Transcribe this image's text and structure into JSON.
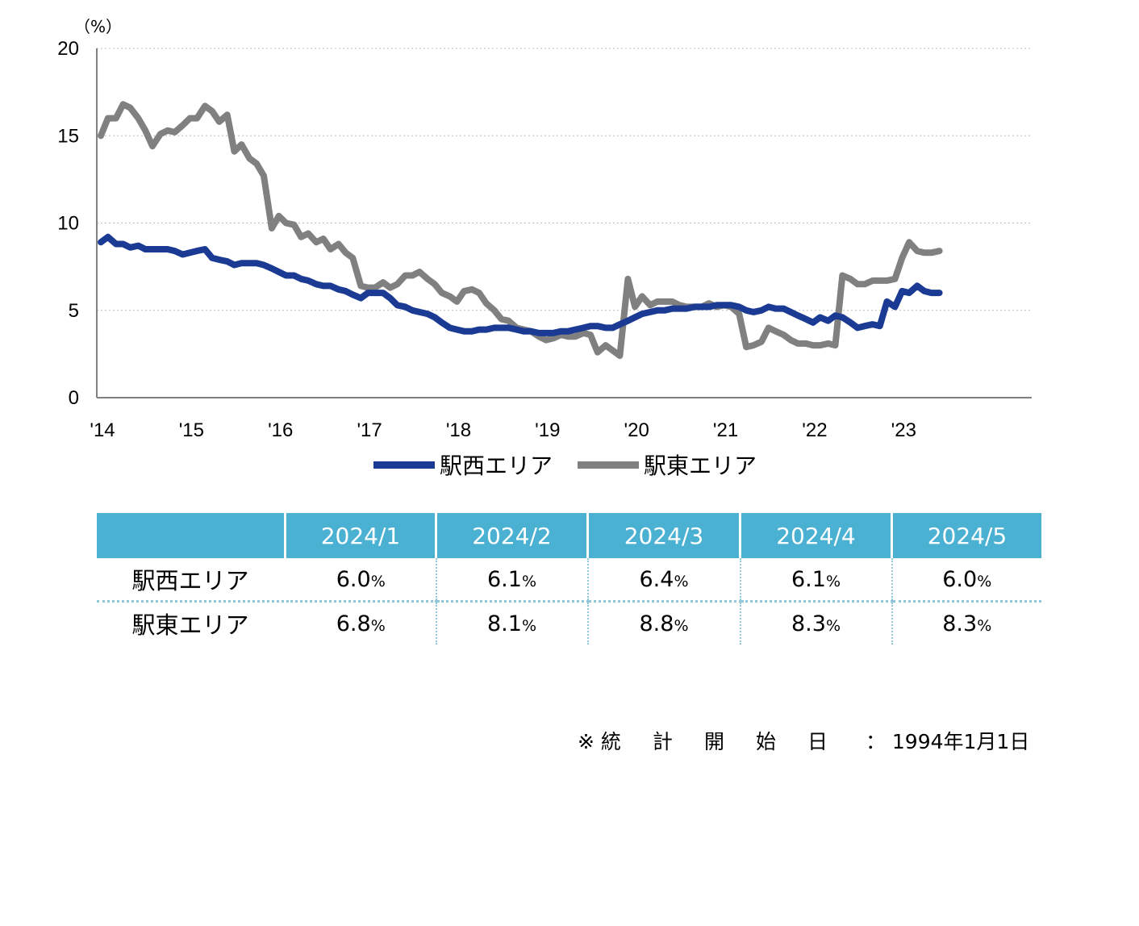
{
  "chart_data": {
    "type": "line",
    "unit_label": "（%）",
    "yticks": [
      "20",
      "15",
      "10",
      "5",
      "0"
    ],
    "ylim": [
      0,
      20
    ],
    "xticks": [
      "'14",
      "'15",
      "'16",
      "'17",
      "'18",
      "'19",
      "'20",
      "'21",
      "'22",
      "'23"
    ],
    "xlim": [
      2014.0,
      2024.42
    ],
    "grid": "horizontal-dotted",
    "legend_position": "bottom",
    "series": [
      {
        "name": "駅西エリア",
        "color": "#1a3a94",
        "points": [
          [
            2014.0,
            8.9
          ],
          [
            2014.08,
            9.2
          ],
          [
            2014.17,
            8.8
          ],
          [
            2014.25,
            8.8
          ],
          [
            2014.33,
            8.6
          ],
          [
            2014.42,
            8.7
          ],
          [
            2014.5,
            8.5
          ],
          [
            2014.58,
            8.5
          ],
          [
            2014.67,
            8.5
          ],
          [
            2014.75,
            8.5
          ],
          [
            2014.83,
            8.4
          ],
          [
            2014.92,
            8.2
          ],
          [
            2015.0,
            8.3
          ],
          [
            2015.08,
            8.4
          ],
          [
            2015.17,
            8.5
          ],
          [
            2015.25,
            8.0
          ],
          [
            2015.33,
            7.9
          ],
          [
            2015.42,
            7.8
          ],
          [
            2015.5,
            7.6
          ],
          [
            2015.58,
            7.7
          ],
          [
            2015.67,
            7.7
          ],
          [
            2015.75,
            7.7
          ],
          [
            2015.83,
            7.6
          ],
          [
            2015.92,
            7.4
          ],
          [
            2016.0,
            7.2
          ],
          [
            2016.08,
            7.0
          ],
          [
            2016.17,
            7.0
          ],
          [
            2016.25,
            6.8
          ],
          [
            2016.33,
            6.7
          ],
          [
            2016.42,
            6.5
          ],
          [
            2016.5,
            6.4
          ],
          [
            2016.58,
            6.4
          ],
          [
            2016.67,
            6.2
          ],
          [
            2016.75,
            6.1
          ],
          [
            2016.83,
            5.9
          ],
          [
            2016.92,
            5.7
          ],
          [
            2017.0,
            6.0
          ],
          [
            2017.08,
            6.0
          ],
          [
            2017.17,
            6.0
          ],
          [
            2017.25,
            5.7
          ],
          [
            2017.33,
            5.3
          ],
          [
            2017.42,
            5.2
          ],
          [
            2017.5,
            5.0
          ],
          [
            2017.58,
            4.9
          ],
          [
            2017.67,
            4.8
          ],
          [
            2017.75,
            4.6
          ],
          [
            2017.83,
            4.3
          ],
          [
            2017.92,
            4.0
          ],
          [
            2018.0,
            3.9
          ],
          [
            2018.08,
            3.8
          ],
          [
            2018.17,
            3.8
          ],
          [
            2018.25,
            3.9
          ],
          [
            2018.33,
            3.9
          ],
          [
            2018.42,
            4.0
          ],
          [
            2018.5,
            4.0
          ],
          [
            2018.58,
            4.0
          ],
          [
            2018.67,
            3.9
          ],
          [
            2018.75,
            3.8
          ],
          [
            2018.83,
            3.8
          ],
          [
            2018.92,
            3.7
          ],
          [
            2019.0,
            3.7
          ],
          [
            2019.08,
            3.7
          ],
          [
            2019.17,
            3.8
          ],
          [
            2019.25,
            3.8
          ],
          [
            2019.33,
            3.9
          ],
          [
            2019.42,
            4.0
          ],
          [
            2019.5,
            4.1
          ],
          [
            2019.58,
            4.1
          ],
          [
            2019.67,
            4.0
          ],
          [
            2019.75,
            4.0
          ],
          [
            2019.83,
            4.2
          ],
          [
            2019.92,
            4.4
          ],
          [
            2020.0,
            4.6
          ],
          [
            2020.08,
            4.8
          ],
          [
            2020.17,
            4.9
          ],
          [
            2020.25,
            5.0
          ],
          [
            2020.33,
            5.0
          ],
          [
            2020.42,
            5.1
          ],
          [
            2020.5,
            5.1
          ],
          [
            2020.58,
            5.1
          ],
          [
            2020.67,
            5.2
          ],
          [
            2020.75,
            5.2
          ],
          [
            2020.83,
            5.2
          ],
          [
            2020.92,
            5.3
          ],
          [
            2021.0,
            5.3
          ],
          [
            2021.08,
            5.3
          ],
          [
            2021.17,
            5.2
          ],
          [
            2021.25,
            5.0
          ],
          [
            2021.33,
            4.9
          ],
          [
            2021.42,
            5.0
          ],
          [
            2021.5,
            5.2
          ],
          [
            2021.58,
            5.1
          ],
          [
            2021.67,
            5.1
          ],
          [
            2021.75,
            4.9
          ],
          [
            2021.83,
            4.7
          ],
          [
            2021.92,
            4.5
          ],
          [
            2022.0,
            4.3
          ],
          [
            2022.08,
            4.6
          ],
          [
            2022.17,
            4.4
          ],
          [
            2022.25,
            4.7
          ],
          [
            2022.33,
            4.6
          ],
          [
            2022.42,
            4.3
          ],
          [
            2022.5,
            4.0
          ],
          [
            2022.58,
            4.1
          ],
          [
            2022.67,
            4.2
          ],
          [
            2022.75,
            4.1
          ],
          [
            2022.83,
            5.5
          ],
          [
            2022.92,
            5.2
          ],
          [
            2023.0,
            6.1
          ],
          [
            2023.08,
            6.0
          ],
          [
            2023.17,
            6.4
          ],
          [
            2023.25,
            6.1
          ],
          [
            2023.33,
            6.0
          ],
          [
            2023.42,
            6.0
          ]
        ]
      },
      {
        "name": "駅東エリア",
        "color": "#808080",
        "points": [
          [
            2014.0,
            15.0
          ],
          [
            2014.08,
            16.0
          ],
          [
            2014.17,
            16.0
          ],
          [
            2014.25,
            16.8
          ],
          [
            2014.33,
            16.6
          ],
          [
            2014.42,
            16.0
          ],
          [
            2014.5,
            15.3
          ],
          [
            2014.58,
            14.4
          ],
          [
            2014.67,
            15.1
          ],
          [
            2014.75,
            15.3
          ],
          [
            2014.83,
            15.2
          ],
          [
            2014.92,
            15.6
          ],
          [
            2015.0,
            16.0
          ],
          [
            2015.08,
            16.0
          ],
          [
            2015.17,
            16.7
          ],
          [
            2015.25,
            16.4
          ],
          [
            2015.33,
            15.8
          ],
          [
            2015.42,
            16.2
          ],
          [
            2015.5,
            14.1
          ],
          [
            2015.58,
            14.5
          ],
          [
            2015.67,
            13.7
          ],
          [
            2015.75,
            13.4
          ],
          [
            2015.83,
            12.7
          ],
          [
            2015.92,
            9.7
          ],
          [
            2016.0,
            10.4
          ],
          [
            2016.08,
            10.0
          ],
          [
            2016.17,
            9.9
          ],
          [
            2016.25,
            9.2
          ],
          [
            2016.33,
            9.4
          ],
          [
            2016.42,
            8.9
          ],
          [
            2016.5,
            9.1
          ],
          [
            2016.58,
            8.5
          ],
          [
            2016.67,
            8.8
          ],
          [
            2016.75,
            8.3
          ],
          [
            2016.83,
            8.0
          ],
          [
            2016.92,
            6.4
          ],
          [
            2017.0,
            6.3
          ],
          [
            2017.08,
            6.3
          ],
          [
            2017.17,
            6.6
          ],
          [
            2017.25,
            6.3
          ],
          [
            2017.33,
            6.5
          ],
          [
            2017.42,
            7.0
          ],
          [
            2017.5,
            7.0
          ],
          [
            2017.58,
            7.2
          ],
          [
            2017.67,
            6.8
          ],
          [
            2017.75,
            6.5
          ],
          [
            2017.83,
            6.0
          ],
          [
            2017.92,
            5.8
          ],
          [
            2018.0,
            5.5
          ],
          [
            2018.08,
            6.1
          ],
          [
            2018.17,
            6.2
          ],
          [
            2018.25,
            6.0
          ],
          [
            2018.33,
            5.4
          ],
          [
            2018.42,
            5.0
          ],
          [
            2018.5,
            4.5
          ],
          [
            2018.58,
            4.4
          ],
          [
            2018.67,
            4.0
          ],
          [
            2018.75,
            3.9
          ],
          [
            2018.83,
            3.8
          ],
          [
            2018.92,
            3.5
          ],
          [
            2019.0,
            3.3
          ],
          [
            2019.08,
            3.4
          ],
          [
            2019.17,
            3.6
          ],
          [
            2019.25,
            3.5
          ],
          [
            2019.33,
            3.5
          ],
          [
            2019.42,
            3.7
          ],
          [
            2019.5,
            3.6
          ],
          [
            2019.58,
            2.6
          ],
          [
            2019.67,
            3.0
          ],
          [
            2019.75,
            2.7
          ],
          [
            2019.83,
            2.4
          ],
          [
            2019.92,
            6.8
          ],
          [
            2020.0,
            5.2
          ],
          [
            2020.08,
            5.8
          ],
          [
            2020.17,
            5.3
          ],
          [
            2020.25,
            5.5
          ],
          [
            2020.33,
            5.5
          ],
          [
            2020.42,
            5.5
          ],
          [
            2020.5,
            5.3
          ],
          [
            2020.58,
            5.2
          ],
          [
            2020.67,
            5.2
          ],
          [
            2020.75,
            5.2
          ],
          [
            2020.83,
            5.4
          ],
          [
            2020.92,
            5.2
          ],
          [
            2021.0,
            5.3
          ],
          [
            2021.08,
            5.2
          ],
          [
            2021.17,
            4.8
          ],
          [
            2021.25,
            2.9
          ],
          [
            2021.33,
            3.0
          ],
          [
            2021.42,
            3.2
          ],
          [
            2021.5,
            4.0
          ],
          [
            2021.58,
            3.8
          ],
          [
            2021.67,
            3.6
          ],
          [
            2021.75,
            3.3
          ],
          [
            2021.83,
            3.1
          ],
          [
            2021.92,
            3.1
          ],
          [
            2022.0,
            3.0
          ],
          [
            2022.08,
            3.0
          ],
          [
            2022.17,
            3.1
          ],
          [
            2022.25,
            3.0
          ],
          [
            2022.33,
            7.0
          ],
          [
            2022.42,
            6.8
          ],
          [
            2022.5,
            6.5
          ],
          [
            2022.58,
            6.5
          ],
          [
            2022.67,
            6.7
          ],
          [
            2022.75,
            6.7
          ],
          [
            2022.83,
            6.7
          ],
          [
            2022.92,
            6.8
          ],
          [
            2023.0,
            8.0
          ],
          [
            2023.08,
            8.9
          ],
          [
            2023.17,
            8.4
          ],
          [
            2023.25,
            8.3
          ],
          [
            2023.33,
            8.3
          ],
          [
            2023.42,
            8.4
          ]
        ]
      }
    ]
  },
  "legend": [
    {
      "label": "駅西エリア",
      "color": "#1a3a94"
    },
    {
      "label": "駅東エリア",
      "color": "#808080"
    }
  ],
  "table": {
    "header_color": "#4bb1d2",
    "columns": [
      "2024/1",
      "2024/2",
      "2024/3",
      "2024/4",
      "2024/5"
    ],
    "rows": [
      {
        "label": "駅西エリア",
        "values": [
          "6.0",
          "6.1",
          "6.4",
          "6.1",
          "6.0"
        ],
        "unit": "%"
      },
      {
        "label": "駅東エリア",
        "values": [
          "6.8",
          "8.1",
          "8.8",
          "8.3",
          "8.3"
        ],
        "unit": "%"
      }
    ]
  },
  "note": {
    "mark": "※",
    "label_chars": [
      "統",
      "計",
      "開",
      "始",
      "日"
    ],
    "colon": "：",
    "value": "1994年1月1日"
  }
}
